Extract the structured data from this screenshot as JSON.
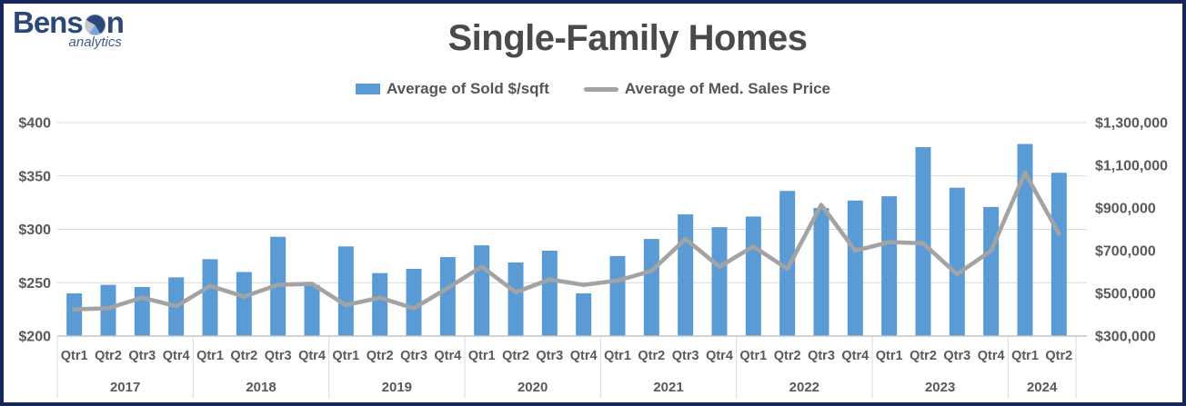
{
  "logo": {
    "brand_part1": "Bens",
    "brand_part2": "n",
    "tagline": "analytics",
    "brand_color": "#2c4879"
  },
  "header": {
    "title": "Single-Family Homes"
  },
  "legend": {
    "items": [
      {
        "label": "Average of Sold $/sqft",
        "marker": "bar-swatch",
        "color": "#5b9bd5"
      },
      {
        "label": "Average of Med. Sales Price",
        "marker": "line-swatch",
        "color": "#a3a3a3"
      }
    ]
  },
  "colors": {
    "frame_border": "#17265a",
    "bar": "#5b9bd5",
    "line": "#a3a3a3",
    "gridline": "#d9d9d9",
    "axis_line": "#c6c6c6",
    "label_text": "#595959",
    "title_text": "#4a4a4a",
    "background": "#ffffff"
  },
  "chart_data": {
    "type": "combo (bar + line, dual axis)",
    "title": "Single-Family Homes",
    "grid": true,
    "legend_position": "top",
    "x": {
      "years": [
        {
          "label": "2017",
          "quarters": [
            "Qtr1",
            "Qtr2",
            "Qtr3",
            "Qtr4"
          ]
        },
        {
          "label": "2018",
          "quarters": [
            "Qtr1",
            "Qtr2",
            "Qtr3",
            "Qtr4"
          ]
        },
        {
          "label": "2019",
          "quarters": [
            "Qtr1",
            "Qtr2",
            "Qtr3",
            "Qtr4"
          ]
        },
        {
          "label": "2020",
          "quarters": [
            "Qtr1",
            "Qtr2",
            "Qtr3",
            "Qtr4"
          ]
        },
        {
          "label": "2021",
          "quarters": [
            "Qtr1",
            "Qtr2",
            "Qtr3",
            "Qtr4"
          ]
        },
        {
          "label": "2022",
          "quarters": [
            "Qtr1",
            "Qtr2",
            "Qtr3",
            "Qtr4"
          ]
        },
        {
          "label": "2023",
          "quarters": [
            "Qtr1",
            "Qtr2",
            "Qtr3",
            "Qtr4"
          ]
        },
        {
          "label": "2024",
          "quarters": [
            "Qtr1",
            "Qtr2"
          ]
        }
      ]
    },
    "left_axis": {
      "min": 200,
      "max": 400,
      "ticks": [
        {
          "label": "$200",
          "value": 200
        },
        {
          "label": "$250",
          "value": 250
        },
        {
          "label": "$300",
          "value": 300
        },
        {
          "label": "$350",
          "value": 350
        },
        {
          "label": "$400",
          "value": 400
        }
      ]
    },
    "right_axis": {
      "min": 300000,
      "max": 1300000,
      "ticks": [
        {
          "label": "$300,000",
          "value": 300000
        },
        {
          "label": "$500,000",
          "value": 500000
        },
        {
          "label": "$700,000",
          "value": 700000
        },
        {
          "label": "$900,000",
          "value": 900000
        },
        {
          "label": "$1,100,000",
          "value": 1100000
        },
        {
          "label": "$1,300,000",
          "value": 1300000
        }
      ]
    },
    "series": [
      {
        "name": "Average of Sold $/sqft",
        "type": "bar",
        "axis": "left",
        "color": "#5b9bd5",
        "values": [
          240,
          248,
          246,
          255,
          272,
          260,
          293,
          248,
          284,
          259,
          263,
          274,
          285,
          269,
          280,
          240,
          275,
          291,
          314,
          302,
          312,
          336,
          320,
          327,
          331,
          377,
          339,
          321,
          380,
          353
        ]
      },
      {
        "name": "Average of Med. Sales Price",
        "type": "line",
        "axis": "right",
        "color": "#a3a3a3",
        "values": [
          425000,
          430000,
          480000,
          440000,
          535000,
          485000,
          540000,
          545000,
          445000,
          480000,
          430000,
          525000,
          625000,
          505000,
          565000,
          540000,
          560000,
          605000,
          755000,
          625000,
          720000,
          615000,
          915000,
          700000,
          740000,
          735000,
          590000,
          700000,
          1065000,
          780000
        ]
      }
    ]
  }
}
